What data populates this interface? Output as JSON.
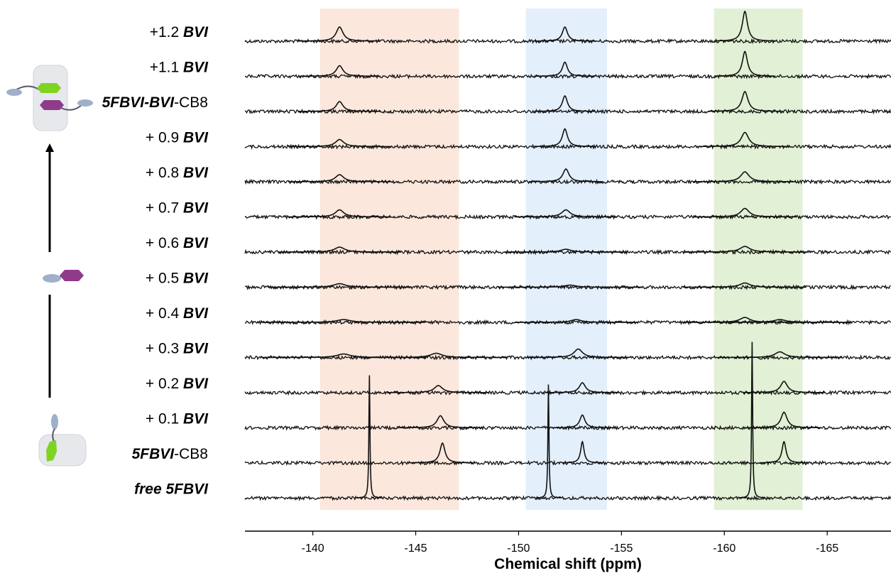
{
  "chart_data": {
    "type": "stacked-spectra",
    "x_label": "Chemical shift (ppm)",
    "xlim": [
      -136.7,
      -168.1
    ],
    "xticks": [
      -140,
      -145,
      -150,
      -155,
      -160,
      -165
    ],
    "line_color": "#111111",
    "regions": [
      {
        "xlim": [
          -140.35,
          -147.1
        ],
        "color": "#fbe7dc"
      },
      {
        "xlim": [
          -150.35,
          -154.3
        ],
        "color": "#e3effb"
      },
      {
        "xlim": [
          -159.5,
          -163.8
        ],
        "color": "#e2f0d5"
      }
    ],
    "series": [
      {
        "label": [
          {
            "text": "+1.2 "
          },
          {
            "text": "BVI",
            "style": "bold-italic"
          }
        ],
        "peaks": [
          {
            "x": -141.3,
            "height": 20,
            "width": 0.2
          },
          {
            "x": -152.25,
            "height": 20,
            "width": 0.15
          },
          {
            "x": -161.0,
            "height": 42,
            "width": 0.15
          }
        ]
      },
      {
        "label": [
          {
            "text": "+1.1 "
          },
          {
            "text": "BVI",
            "style": "bold-italic"
          }
        ],
        "peaks": [
          {
            "x": -141.3,
            "height": 15,
            "width": 0.2
          },
          {
            "x": -152.25,
            "height": 20,
            "width": 0.15
          },
          {
            "x": -161.0,
            "height": 35,
            "width": 0.15
          }
        ]
      },
      {
        "label": [
          {
            "text": "5FBVI-BVI",
            "style": "bold-italic"
          },
          {
            "text": "-CB8"
          }
        ],
        "peaks": [
          {
            "x": -141.3,
            "height": 14,
            "width": 0.2
          },
          {
            "x": -152.25,
            "height": 22,
            "width": 0.15
          },
          {
            "x": -161.0,
            "height": 28,
            "width": 0.18
          }
        ]
      },
      {
        "label": [
          {
            "text": "+ 0.9 "
          },
          {
            "text": "BVI",
            "style": "bold-italic"
          }
        ],
        "peaks": [
          {
            "x": -141.3,
            "height": 10,
            "width": 0.25
          },
          {
            "x": -152.25,
            "height": 25,
            "width": 0.15
          },
          {
            "x": -161.0,
            "height": 20,
            "width": 0.22
          }
        ]
      },
      {
        "label": [
          {
            "text": "+ 0.8 "
          },
          {
            "text": "BVI",
            "style": "bold-italic"
          }
        ],
        "peaks": [
          {
            "x": -141.3,
            "height": 10,
            "width": 0.25
          },
          {
            "x": -152.3,
            "height": 18,
            "width": 0.18
          },
          {
            "x": -161.0,
            "height": 14,
            "width": 0.25
          }
        ]
      },
      {
        "label": [
          {
            "text": "+ 0.7 "
          },
          {
            "text": "BVI",
            "style": "bold-italic"
          }
        ],
        "peaks": [
          {
            "x": -141.3,
            "height": 10,
            "width": 0.25
          },
          {
            "x": -152.3,
            "height": 10,
            "width": 0.25
          },
          {
            "x": -161.0,
            "height": 12,
            "width": 0.25
          }
        ]
      },
      {
        "label": [
          {
            "text": "+ 0.6 "
          },
          {
            "text": "BVI",
            "style": "bold-italic"
          }
        ],
        "peaks": [
          {
            "x": -141.3,
            "height": 7,
            "width": 0.3
          },
          {
            "x": -152.3,
            "height": 4,
            "width": 0.3
          },
          {
            "x": -161.0,
            "height": 8,
            "width": 0.3
          }
        ]
      },
      {
        "label": [
          {
            "text": "+ 0.5 "
          },
          {
            "text": "BVI",
            "style": "bold-italic"
          }
        ],
        "peaks": [
          {
            "x": -141.3,
            "height": 5,
            "width": 0.35
          },
          {
            "x": -152.5,
            "height": 3,
            "width": 0.35
          },
          {
            "x": -161.0,
            "height": 6,
            "width": 0.3
          }
        ]
      },
      {
        "label": [
          {
            "text": "+ 0.4 "
          },
          {
            "text": "BVI",
            "style": "bold-italic"
          }
        ],
        "peaks": [
          {
            "x": -141.5,
            "height": 4,
            "width": 0.4
          },
          {
            "x": -152.8,
            "height": 4,
            "width": 0.3
          },
          {
            "x": -161.0,
            "height": 7,
            "width": 0.3
          },
          {
            "x": -162.7,
            "height": 4,
            "width": 0.35
          }
        ]
      },
      {
        "label": [
          {
            "text": "+ 0.3 "
          },
          {
            "text": "BVI",
            "style": "bold-italic"
          }
        ],
        "peaks": [
          {
            "x": -141.5,
            "height": 5,
            "width": 0.4
          },
          {
            "x": -146.0,
            "height": 6,
            "width": 0.35
          },
          {
            "x": -152.9,
            "height": 12,
            "width": 0.25
          },
          {
            "x": -162.7,
            "height": 8,
            "width": 0.3
          }
        ]
      },
      {
        "label": [
          {
            "text": "+ 0.2 "
          },
          {
            "text": "BVI",
            "style": "bold-italic"
          }
        ],
        "peaks": [
          {
            "x": -146.1,
            "height": 10,
            "width": 0.25
          },
          {
            "x": -153.1,
            "height": 14,
            "width": 0.18
          },
          {
            "x": -162.9,
            "height": 16,
            "width": 0.2
          }
        ]
      },
      {
        "label": [
          {
            "text": "+ 0.1 "
          },
          {
            "text": "BVI",
            "style": "bold-italic"
          }
        ],
        "peaks": [
          {
            "x": -146.2,
            "height": 17,
            "width": 0.2
          },
          {
            "x": -153.1,
            "height": 18,
            "width": 0.15
          },
          {
            "x": -162.9,
            "height": 22,
            "width": 0.18
          }
        ]
      },
      {
        "label": [
          {
            "text": "5FBVI",
            "style": "bold-italic"
          },
          {
            "text": "-CB8"
          }
        ],
        "peaks": [
          {
            "x": -146.3,
            "height": 28,
            "width": 0.15
          },
          {
            "x": -153.1,
            "height": 30,
            "width": 0.1
          },
          {
            "x": -162.9,
            "height": 30,
            "width": 0.12
          }
        ]
      },
      {
        "label": [
          {
            "text": "free 5FBVI",
            "style": "bold-italic"
          }
        ],
        "peaks": [
          {
            "x": -142.75,
            "height": 173,
            "width": 0.03
          },
          {
            "x": -151.45,
            "height": 160,
            "width": 0.03
          },
          {
            "x": -161.35,
            "height": 220,
            "width": 0.03
          }
        ]
      }
    ]
  }
}
